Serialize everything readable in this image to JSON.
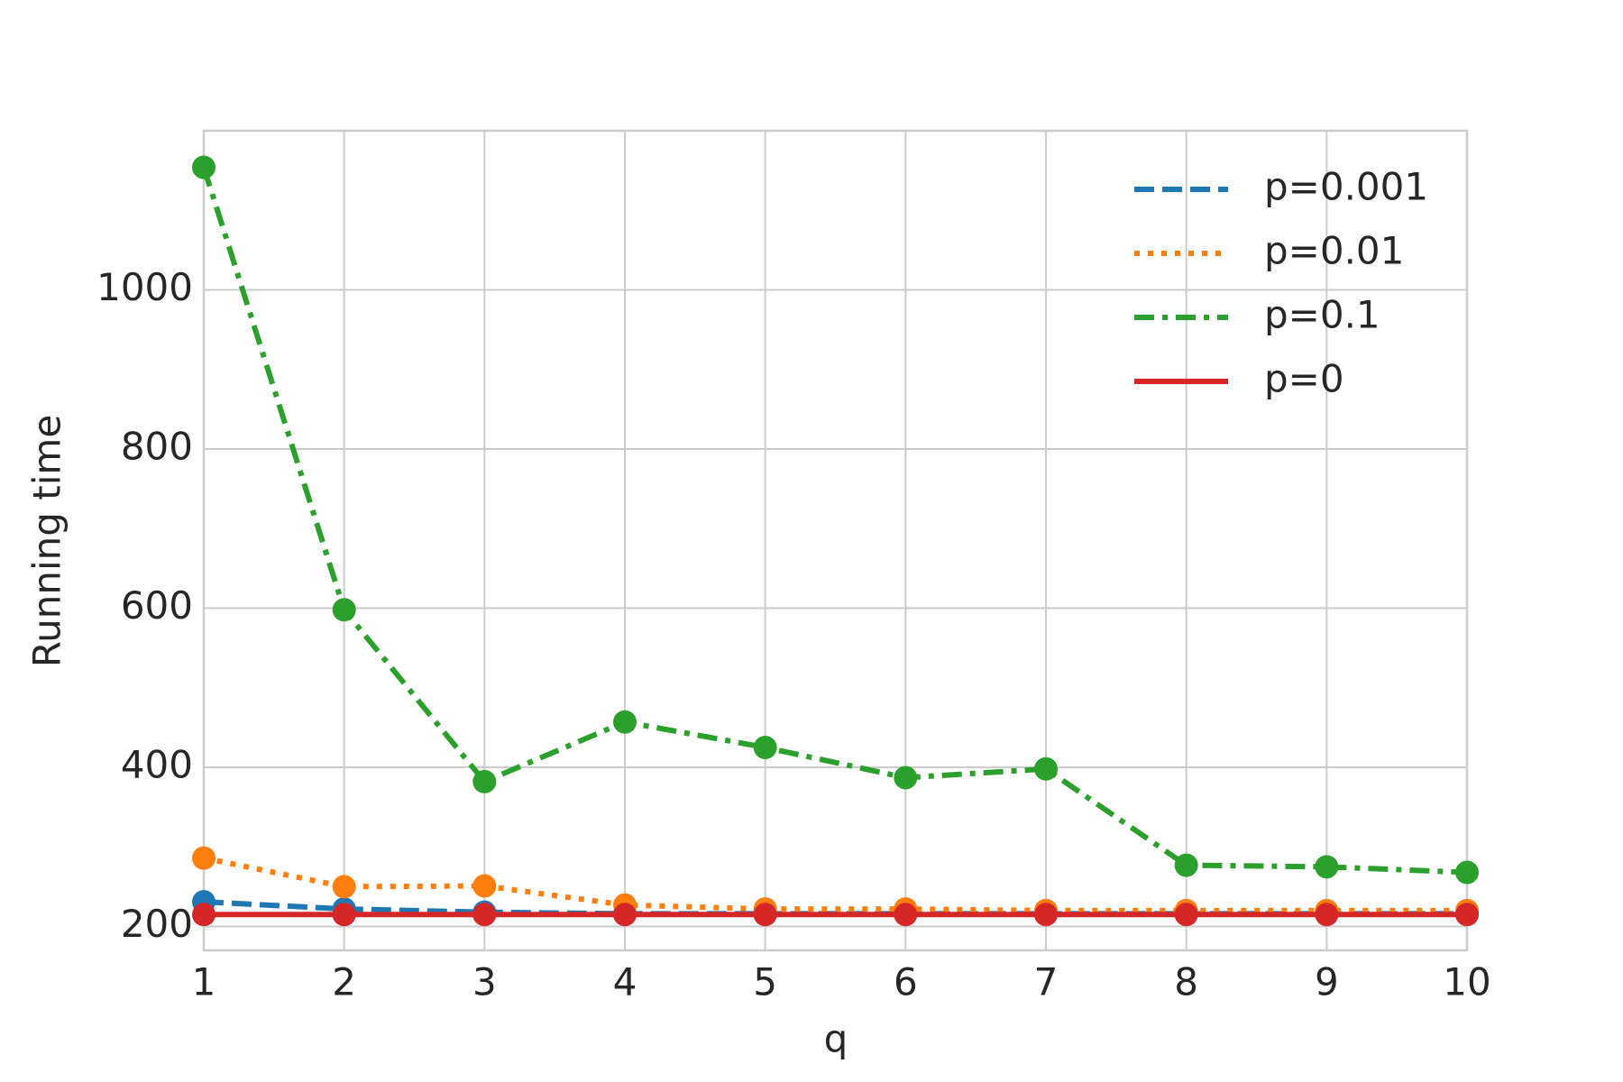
{
  "chart_data": {
    "type": "line",
    "xlabel": "q",
    "ylabel": "Running time",
    "x": [
      1,
      2,
      3,
      4,
      5,
      6,
      7,
      8,
      9,
      10
    ],
    "xlim": [
      1,
      10
    ],
    "xticks": [
      1,
      2,
      3,
      4,
      5,
      6,
      7,
      8,
      9,
      10
    ],
    "ylim": [
      170,
      1200
    ],
    "yticks": [
      200,
      400,
      600,
      800,
      1000
    ],
    "grid": true,
    "legend": "upper right",
    "markers": true,
    "series": [
      {
        "name": "p=0.001",
        "color": "#1f77b4",
        "linestyle": "dashed",
        "values": [
          231,
          222,
          218,
          216,
          216,
          216,
          216,
          216,
          216,
          216
        ]
      },
      {
        "name": "p=0.01",
        "color": "#ff7f0e",
        "linestyle": "dotted",
        "values": [
          286,
          250,
          251,
          227,
          222,
          222,
          220,
          220,
          220,
          220
        ]
      },
      {
        "name": "p=0.1",
        "color": "#2ca02c",
        "linestyle": "dashdot",
        "values": [
          1154,
          598,
          382,
          457,
          425,
          387,
          398,
          277,
          275,
          268
        ]
      },
      {
        "name": "p=0",
        "color": "#d62728",
        "linestyle": "solid",
        "values": [
          215,
          215,
          215,
          215,
          215,
          215,
          215,
          215,
          215,
          215
        ]
      }
    ]
  }
}
